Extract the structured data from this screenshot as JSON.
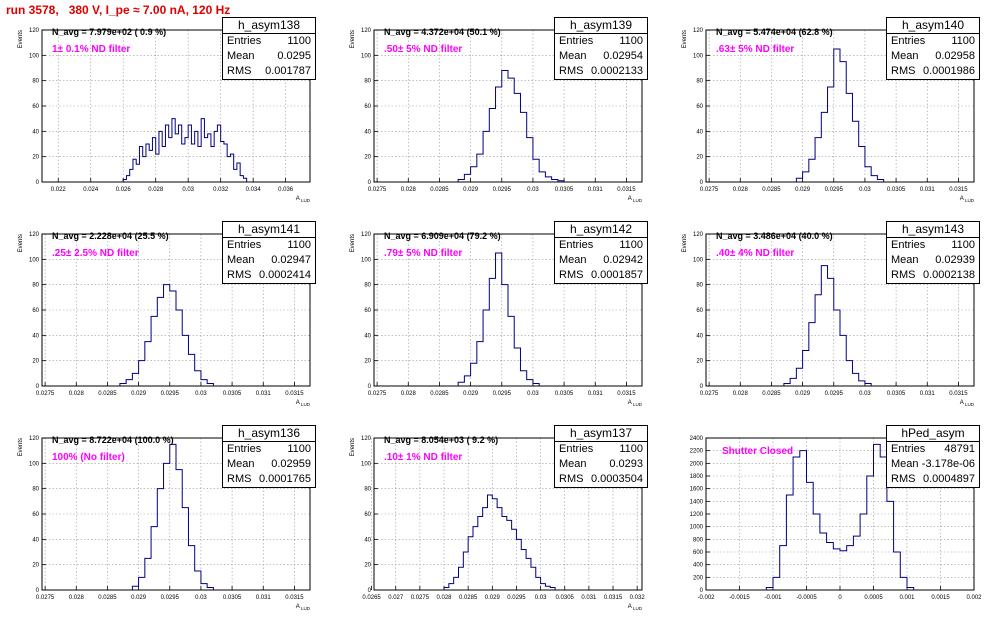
{
  "page": {
    "title": "run 3578,   380 V, I_pe ≈ 7.00 nA, 120 Hz",
    "title_color": "#e00000",
    "line_color": "#000080",
    "annotation_color": "#ff00ff"
  },
  "chart_data": [
    {
      "type": "bar",
      "name": "h_asym138",
      "title": "",
      "ylabel": "Events",
      "xlabel": "A_LUD",
      "xlim": [
        0.021,
        0.0375
      ],
      "ylim": [
        0,
        120
      ],
      "xticks": [
        0.022,
        0.024,
        0.026,
        0.028,
        0.03,
        0.032,
        0.034,
        0.036
      ],
      "xtick_labels": [
        "0.022",
        "0.024",
        "0.026",
        "0.028",
        "0.03",
        "0.032",
        "0.034",
        "0.036"
      ],
      "yticks": [
        0,
        20,
        40,
        60,
        80,
        100,
        120
      ],
      "grid": true,
      "stats": {
        "title": "h_asym138",
        "entries": "1100",
        "mean": "0.0295",
        "rms": "0.001787"
      },
      "annotations": {
        "n_avg": "N_avg = 7.979e+02 ( 0.9 %)",
        "filter": "1± 0.1% ND filter"
      },
      "x": [
        0.0261,
        0.0263,
        0.0265,
        0.0267,
        0.0269,
        0.0271,
        0.0273,
        0.0275,
        0.0277,
        0.0279,
        0.0281,
        0.0283,
        0.0285,
        0.0287,
        0.0289,
        0.0291,
        0.0293,
        0.0295,
        0.0297,
        0.0299,
        0.0301,
        0.0303,
        0.0305,
        0.0307,
        0.0309,
        0.0311,
        0.0313,
        0.0315,
        0.0317,
        0.0319,
        0.0321,
        0.0323,
        0.0325,
        0.0327,
        0.0329,
        0.0331,
        0.0333,
        0.0335
      ],
      "values": [
        2,
        5,
        10,
        18,
        14,
        28,
        20,
        30,
        25,
        35,
        22,
        40,
        28,
        45,
        35,
        50,
        38,
        45,
        30,
        35,
        45,
        30,
        40,
        28,
        50,
        35,
        38,
        28,
        40,
        45,
        32,
        30,
        20,
        22,
        10,
        15,
        5,
        3
      ]
    },
    {
      "type": "bar",
      "name": "h_asym139",
      "title": "",
      "ylabel": "Events",
      "xlabel": "A_LUD",
      "xlim": [
        0.02745,
        0.03175
      ],
      "ylim": [
        0,
        120
      ],
      "xticks": [
        0.0275,
        0.028,
        0.0285,
        0.029,
        0.0295,
        0.03,
        0.0305,
        0.031,
        0.0315
      ],
      "xtick_labels": [
        "0.0275",
        "0.028",
        "0.0285",
        "0.029",
        "0.0295",
        "0.03",
        "0.0305",
        "0.031",
        "0.0315"
      ],
      "yticks": [
        0,
        20,
        40,
        60,
        80,
        100,
        120
      ],
      "grid": true,
      "stats": {
        "title": "h_asym139",
        "entries": "1100",
        "mean": "0.02954",
        "rms": "0.0002133"
      },
      "annotations": {
        "n_avg": "N_avg = 4.372e+04 (50.1 %)",
        "filter": ".50± 5% ND filter"
      },
      "x": [
        0.02885,
        0.02895,
        0.02905,
        0.02915,
        0.02925,
        0.02935,
        0.02945,
        0.02955,
        0.02965,
        0.02975,
        0.02985,
        0.02995,
        0.03005,
        0.03015,
        0.03025,
        0.03035,
        0.03045
      ],
      "values": [
        2,
        6,
        12,
        22,
        40,
        58,
        75,
        88,
        82,
        70,
        55,
        35,
        18,
        8,
        4,
        2,
        1
      ]
    },
    {
      "type": "bar",
      "name": "h_asym140",
      "title": "",
      "ylabel": "Events",
      "xlabel": "A_LUD",
      "xlim": [
        0.02745,
        0.03175
      ],
      "ylim": [
        0,
        120
      ],
      "xticks": [
        0.0275,
        0.028,
        0.0285,
        0.029,
        0.0295,
        0.03,
        0.0305,
        0.031,
        0.0315
      ],
      "xtick_labels": [
        "0.0275",
        "0.028",
        "0.0285",
        "0.029",
        "0.0295",
        "0.03",
        "0.0305",
        "0.031",
        "0.0315"
      ],
      "yticks": [
        0,
        20,
        40,
        60,
        80,
        100,
        120
      ],
      "grid": true,
      "stats": {
        "title": "h_asym140",
        "entries": "1100",
        "mean": "0.02958",
        "rms": "0.0001986"
      },
      "annotations": {
        "n_avg": "N_avg = 5.474e+04 (62.8 %)",
        "filter": ".63± 5% ND filter"
      },
      "x": [
        0.02895,
        0.02905,
        0.02915,
        0.02925,
        0.02935,
        0.02945,
        0.02955,
        0.02965,
        0.02975,
        0.02985,
        0.02995,
        0.03005,
        0.03015,
        0.03025
      ],
      "values": [
        3,
        8,
        18,
        35,
        55,
        75,
        105,
        95,
        70,
        48,
        28,
        12,
        5,
        2
      ]
    },
    {
      "type": "bar",
      "name": "h_asym141",
      "title": "",
      "ylabel": "Events",
      "xlabel": "A_LUD",
      "xlim": [
        0.02745,
        0.03175
      ],
      "ylim": [
        0,
        120
      ],
      "xticks": [
        0.0275,
        0.028,
        0.0285,
        0.029,
        0.0295,
        0.03,
        0.0305,
        0.031,
        0.0315
      ],
      "xtick_labels": [
        "0.0275",
        "0.028",
        "0.0285",
        "0.029",
        "0.0295",
        "0.03",
        "0.0305",
        "0.031",
        "0.0315"
      ],
      "yticks": [
        0,
        20,
        40,
        60,
        80,
        100,
        120
      ],
      "grid": true,
      "stats": {
        "title": "h_asym141",
        "entries": "1100",
        "mean": "0.02947",
        "rms": "0.0002414"
      },
      "annotations": {
        "n_avg": "N_avg = 2.228e+04 (25.5 %)",
        "filter": ".25± 2.5% ND filter"
      },
      "x": [
        0.02875,
        0.02885,
        0.02895,
        0.02905,
        0.02915,
        0.02925,
        0.02935,
        0.02945,
        0.02955,
        0.02965,
        0.02975,
        0.02985,
        0.02995,
        0.03005,
        0.03015
      ],
      "values": [
        2,
        5,
        10,
        20,
        35,
        55,
        70,
        80,
        75,
        60,
        40,
        25,
        12,
        5,
        2
      ]
    },
    {
      "type": "bar",
      "name": "h_asym142",
      "title": "",
      "ylabel": "Events",
      "xlabel": "A_LUD",
      "xlim": [
        0.02745,
        0.03175
      ],
      "ylim": [
        0,
        120
      ],
      "xticks": [
        0.0275,
        0.028,
        0.0285,
        0.029,
        0.0295,
        0.03,
        0.0305,
        0.031,
        0.0315
      ],
      "xtick_labels": [
        "0.0275",
        "0.028",
        "0.0285",
        "0.029",
        "0.0295",
        "0.03",
        "0.0305",
        "0.031",
        "0.0315"
      ],
      "yticks": [
        0,
        20,
        40,
        60,
        80,
        100,
        120
      ],
      "grid": true,
      "stats": {
        "title": "h_asym142",
        "entries": "1100",
        "mean": "0.02942",
        "rms": "0.0001857"
      },
      "annotations": {
        "n_avg": "N_avg = 6.909e+04 (79.2 %)",
        "filter": ".79± 5% ND filter"
      },
      "x": [
        0.02885,
        0.02895,
        0.02905,
        0.02915,
        0.02925,
        0.02935,
        0.02945,
        0.02955,
        0.02965,
        0.02975,
        0.02985,
        0.02995,
        0.03005
      ],
      "values": [
        3,
        8,
        18,
        35,
        60,
        85,
        105,
        80,
        55,
        30,
        12,
        5,
        2
      ]
    },
    {
      "type": "bar",
      "name": "h_asym143",
      "title": "",
      "ylabel": "Events",
      "xlabel": "A_LUD",
      "xlim": [
        0.02745,
        0.03175
      ],
      "ylim": [
        0,
        120
      ],
      "xticks": [
        0.0275,
        0.028,
        0.0285,
        0.029,
        0.0295,
        0.03,
        0.0305,
        0.031,
        0.0315
      ],
      "xtick_labels": [
        "0.0275",
        "0.028",
        "0.0285",
        "0.029",
        "0.0295",
        "0.03",
        "0.0305",
        "0.031",
        "0.0315"
      ],
      "yticks": [
        0,
        20,
        40,
        60,
        80,
        100,
        120
      ],
      "grid": true,
      "stats": {
        "title": "h_asym143",
        "entries": "1100",
        "mean": "0.02939",
        "rms": "0.0002138"
      },
      "annotations": {
        "n_avg": "N_avg = 3.486e+04 (40.0 %)",
        "filter": ".40± 4% ND filter"
      },
      "x": [
        0.02875,
        0.02885,
        0.02895,
        0.02905,
        0.02915,
        0.02925,
        0.02935,
        0.02945,
        0.02955,
        0.02965,
        0.02975,
        0.02985,
        0.02995,
        0.03005
      ],
      "values": [
        2,
        6,
        14,
        28,
        50,
        72,
        95,
        85,
        60,
        40,
        20,
        10,
        4,
        2
      ]
    },
    {
      "type": "bar",
      "name": "h_asym136",
      "title": "",
      "ylabel": "Events",
      "xlabel": "A_LUD",
      "xlim": [
        0.02745,
        0.03175
      ],
      "ylim": [
        0,
        120
      ],
      "xticks": [
        0.0275,
        0.028,
        0.0285,
        0.029,
        0.0295,
        0.03,
        0.0305,
        0.031,
        0.0315
      ],
      "xtick_labels": [
        "0.0275",
        "0.028",
        "0.0285",
        "0.029",
        "0.0295",
        "0.03",
        "0.0305",
        "0.031",
        "0.0315"
      ],
      "yticks": [
        0,
        20,
        40,
        60,
        80,
        100,
        120
      ],
      "grid": true,
      "stats": {
        "title": "h_asym136",
        "entries": "1100",
        "mean": "0.02959",
        "rms": "0.0001765"
      },
      "annotations": {
        "n_avg": "N_avg = 8.722e+04 (100.0 %)",
        "filter": "100% (No filter)"
      },
      "x": [
        0.02895,
        0.02905,
        0.02915,
        0.02925,
        0.02935,
        0.02945,
        0.02955,
        0.02965,
        0.02975,
        0.02985,
        0.02995,
        0.03005,
        0.03015
      ],
      "values": [
        3,
        10,
        25,
        50,
        80,
        100,
        115,
        95,
        65,
        35,
        15,
        5,
        2
      ]
    },
    {
      "type": "bar",
      "name": "h_asym137",
      "title": "",
      "ylabel": "Events",
      "xlabel": "A_LUD",
      "xlim": [
        0.02655,
        0.0321
      ],
      "ylim": [
        0,
        120
      ],
      "xticks": [
        0.0265,
        0.027,
        0.0275,
        0.028,
        0.0285,
        0.029,
        0.0295,
        0.03,
        0.0305,
        0.031,
        0.0315,
        0.032
      ],
      "xtick_labels": [
        "0.0265",
        "0.027",
        "0.0275",
        "0.028",
        "0.0285",
        "0.029",
        "0.0295",
        "0.03",
        "0.0305",
        "0.031",
        "0.0315",
        "0.032"
      ],
      "yticks": [
        0,
        20,
        40,
        60,
        80,
        100,
        120
      ],
      "grid": true,
      "stats": {
        "title": "h_asym137",
        "entries": "1100",
        "mean": "0.0293",
        "rms": "0.0003504"
      },
      "annotations": {
        "n_avg": "N_avg = 8.054e+03 ( 9.2 %)",
        "filter": ".10± 1% ND filter"
      },
      "x": [
        0.02805,
        0.02815,
        0.02825,
        0.02835,
        0.02845,
        0.02855,
        0.02865,
        0.02875,
        0.02885,
        0.02895,
        0.02905,
        0.02915,
        0.02925,
        0.02935,
        0.02945,
        0.02955,
        0.02965,
        0.02975,
        0.02985,
        0.02995,
        0.03005,
        0.03015,
        0.03025
      ],
      "values": [
        2,
        5,
        10,
        18,
        30,
        42,
        50,
        58,
        65,
        75,
        72,
        65,
        58,
        55,
        48,
        40,
        32,
        25,
        18,
        10,
        5,
        3,
        2
      ]
    },
    {
      "type": "bar",
      "name": "hPed_asym",
      "title": "",
      "ylabel": "",
      "xlabel": "",
      "xlim": [
        -0.002,
        0.002
      ],
      "ylim": [
        0,
        2400
      ],
      "xticks": [
        -0.002,
        -0.0015,
        -0.001,
        -0.0005,
        0,
        0.0005,
        0.001,
        0.0015,
        0.002
      ],
      "xtick_labels": [
        "-0.002",
        "-0.0015",
        "-0.001",
        "-0.0005",
        "0",
        "0.0005",
        "0.001",
        "0.0015",
        "0.002"
      ],
      "yticks": [
        0,
        200,
        400,
        600,
        800,
        1000,
        1200,
        1400,
        1600,
        1800,
        2000,
        2200,
        2400
      ],
      "grid": true,
      "stats": {
        "title": "hPed_asym",
        "entries": "48791",
        "mean": "-3.178e-06",
        "rms": "0.0004897"
      },
      "annotations": {
        "n_avg": "",
        "filter": "Shutter Closed"
      },
      "x": [
        -0.00105,
        -0.00095,
        -0.00085,
        -0.00075,
        -0.00065,
        -0.00055,
        -0.00045,
        -0.00035,
        -0.00025,
        -0.00015,
        -5e-05,
        5e-05,
        0.00015,
        0.00025,
        0.00035,
        0.00045,
        0.00055,
        0.00065,
        0.00075,
        0.00085,
        0.00095,
        0.00105
      ],
      "values": [
        40,
        200,
        700,
        1500,
        2100,
        2200,
        1700,
        1200,
        900,
        750,
        650,
        620,
        700,
        850,
        1200,
        1800,
        2300,
        2100,
        1400,
        600,
        200,
        40
      ]
    }
  ]
}
